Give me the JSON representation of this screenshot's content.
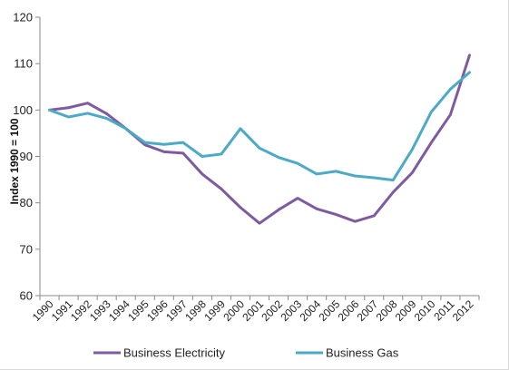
{
  "chart_data": {
    "type": "line",
    "title": "",
    "xlabel": "",
    "ylabel": "Index 1990 = 100",
    "ylim": [
      60,
      120
    ],
    "y_ticks": [
      60,
      70,
      80,
      90,
      100,
      110,
      120
    ],
    "grid": false,
    "legend_position": "bottom",
    "categories": [
      "1990",
      "1991",
      "1992",
      "1993",
      "1994",
      "1995",
      "1996",
      "1997",
      "1998",
      "1999",
      "2000",
      "2001",
      "2002",
      "2003",
      "2004",
      "2005",
      "2006",
      "2007",
      "2008",
      "2009",
      "2010",
      "2011",
      "2012"
    ],
    "series": [
      {
        "name": "Business Electricity",
        "color": "#7e5ba1",
        "values": [
          100,
          100.5,
          101.5,
          99.2,
          96,
          92.5,
          91,
          90.7,
          86.2,
          83,
          79,
          75.6,
          78.5,
          81,
          78.7,
          77.5,
          76,
          77.2,
          82.3,
          86.5,
          93,
          99,
          111.8
        ]
      },
      {
        "name": "Business Gas",
        "color": "#4babc6",
        "values": [
          100,
          98.5,
          99.3,
          98.2,
          96,
          93,
          92.6,
          93,
          90,
          90.5,
          96,
          91.8,
          89.8,
          88.5,
          86.2,
          86.8,
          85.8,
          85.4,
          84.9,
          91.5,
          99.6,
          104.5,
          108.1
        ]
      }
    ]
  }
}
